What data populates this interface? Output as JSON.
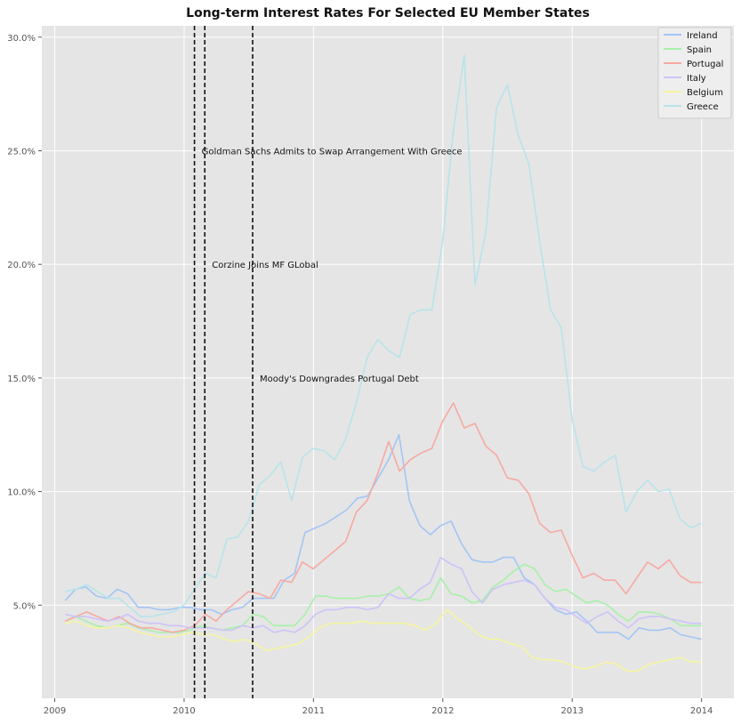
{
  "chart_data": {
    "type": "line",
    "title": "Long-term Interest Rates For Selected EU Member States",
    "xlabel": "",
    "ylabel": "",
    "x_tick_labels": [
      "2009",
      "2010",
      "2011",
      "2012",
      "2013",
      "2014"
    ],
    "y_tick_labels": [
      "5.0%",
      "10.0%",
      "15.0%",
      "20.0%",
      "25.0%",
      "30.0%"
    ],
    "y_ticks": [
      5,
      10,
      15,
      20,
      25,
      30
    ],
    "x_ticks": [
      2009,
      2010,
      2011,
      2012,
      2013,
      2014
    ],
    "xlim": [
      2008.9,
      2014.25
    ],
    "ylim": [
      0.9,
      30.5
    ],
    "grid": true,
    "legend_position": "top-right",
    "series": [
      {
        "name": "Ireland",
        "color": "#a3c5f5",
        "values": [
          5.2,
          5.7,
          5.8,
          5.4,
          5.3,
          5.7,
          5.5,
          4.9,
          4.9,
          4.8,
          4.8,
          4.9,
          4.9,
          4.8,
          4.8,
          4.6,
          4.8,
          4.9,
          5.3,
          5.3,
          5.3,
          6.1,
          6.4,
          8.2,
          8.4,
          8.6,
          8.9,
          9.2,
          9.7,
          9.8,
          10.6,
          11.4,
          12.5,
          9.6,
          8.5,
          8.1,
          8.5,
          8.7,
          7.7,
          7.0,
          6.9,
          6.9,
          7.1,
          7.1,
          6.2,
          5.9,
          5.3,
          4.8,
          4.6,
          4.7,
          4.3,
          3.8,
          3.8,
          3.8,
          3.5,
          4.0,
          3.9,
          3.9,
          4.0,
          3.7,
          3.6,
          3.5
        ]
      },
      {
        "name": "Spain",
        "color": "#a8f0a8",
        "values": [
          4.3,
          4.5,
          4.3,
          4.1,
          4.0,
          4.1,
          4.2,
          4.0,
          3.9,
          3.8,
          3.8,
          3.8,
          3.9,
          4.1,
          4.0,
          3.9,
          4.0,
          4.1,
          4.6,
          4.5,
          4.1,
          4.1,
          4.1,
          4.6,
          5.4,
          5.4,
          5.3,
          5.3,
          5.3,
          5.4,
          5.4,
          5.5,
          5.8,
          5.3,
          5.2,
          5.3,
          6.2,
          5.5,
          5.4,
          5.1,
          5.2,
          5.8,
          6.1,
          6.5,
          6.8,
          6.6,
          5.9,
          5.6,
          5.7,
          5.4,
          5.1,
          5.2,
          5.0,
          4.6,
          4.3,
          4.7,
          4.7,
          4.6,
          4.4,
          4.1,
          4.1,
          4.1
        ]
      },
      {
        "name": "Portugal",
        "color": "#f7a9a3",
        "values": [
          4.3,
          4.5,
          4.7,
          4.5,
          4.3,
          4.5,
          4.2,
          4.0,
          4.0,
          3.9,
          3.8,
          3.9,
          4.1,
          4.6,
          4.3,
          4.8,
          5.2,
          5.6,
          5.5,
          5.3,
          6.1,
          6.0,
          6.9,
          6.6,
          7.0,
          7.4,
          7.8,
          9.1,
          9.6,
          10.8,
          12.2,
          10.9,
          11.4,
          11.7,
          11.9,
          13.1,
          13.9,
          12.8,
          13.0,
          12.0,
          11.6,
          10.6,
          10.5,
          9.9,
          8.6,
          8.2,
          8.3,
          7.2,
          6.2,
          6.4,
          6.1,
          6.1,
          5.5,
          6.2,
          6.9,
          6.6,
          7.0,
          6.3,
          6.0,
          6.0
        ]
      },
      {
        "name": "Italy",
        "color": "#cdc3f7",
        "values": [
          4.6,
          4.5,
          4.5,
          4.4,
          4.3,
          4.4,
          4.6,
          4.3,
          4.2,
          4.2,
          4.1,
          4.1,
          4.0,
          4.0,
          4.0,
          3.9,
          3.9,
          4.1,
          4.0,
          4.1,
          3.8,
          3.9,
          3.8,
          4.1,
          4.6,
          4.8,
          4.8,
          4.9,
          4.9,
          4.8,
          4.9,
          5.5,
          5.3,
          5.3,
          5.7,
          6.0,
          7.1,
          6.8,
          6.6,
          5.6,
          5.1,
          5.7,
          5.9,
          6.0,
          6.1,
          5.9,
          5.3,
          4.9,
          4.8,
          4.5,
          4.2,
          4.5,
          4.7,
          4.3,
          4.0,
          4.4,
          4.5,
          4.5,
          4.4,
          4.3,
          4.2,
          4.2
        ]
      },
      {
        "name": "Belgium",
        "color": "#f5f5a0",
        "values": [
          4.2,
          4.3,
          4.1,
          4.0,
          4.0,
          4.1,
          4.0,
          3.8,
          3.7,
          3.6,
          3.6,
          3.7,
          3.8,
          3.7,
          3.7,
          3.5,
          3.4,
          3.5,
          3.3,
          3.0,
          3.1,
          3.2,
          3.3,
          3.6,
          4.0,
          4.2,
          4.2,
          4.2,
          4.3,
          4.2,
          4.2,
          4.2,
          4.2,
          4.1,
          3.9,
          4.2,
          4.8,
          4.4,
          4.1,
          3.7,
          3.5,
          3.5,
          3.3,
          3.2,
          2.7,
          2.6,
          2.6,
          2.5,
          2.3,
          2.2,
          2.3,
          2.5,
          2.4,
          2.1,
          2.1,
          2.4,
          2.5,
          2.6,
          2.7,
          2.5,
          2.5
        ]
      },
      {
        "name": "Greece",
        "color": "#b7e4ea",
        "values": [
          5.6,
          5.7,
          5.9,
          5.6,
          5.3,
          5.3,
          4.9,
          4.5,
          4.5,
          4.6,
          4.7,
          5.0,
          5.7,
          6.4,
          6.2,
          7.9,
          8.0,
          8.7,
          10.3,
          10.7,
          11.3,
          9.6,
          11.5,
          11.9,
          11.8,
          11.4,
          12.3,
          13.9,
          15.9,
          16.7,
          16.2,
          15.9,
          17.8,
          18.0,
          18.0,
          21.0,
          25.9,
          29.2,
          19.1,
          21.4,
          26.9,
          27.9,
          25.7,
          24.4,
          21.0,
          18.0,
          17.2,
          13.2,
          11.1,
          10.9,
          11.3,
          11.6,
          9.1,
          10.0,
          10.5,
          10.0,
          10.1,
          8.8,
          8.4,
          8.6
        ]
      }
    ],
    "annotations": [
      {
        "x": 2010.08,
        "text": "Goldman Sachs Admits to Swap Arrangement With Greece",
        "y": 25.0
      },
      {
        "x": 2010.16,
        "text": "Corzine Joins MF GLobal",
        "y": 20.0
      },
      {
        "x": 2010.53,
        "text": "Moody's Downgrades Portugal Debt",
        "y": 15.0
      }
    ]
  }
}
